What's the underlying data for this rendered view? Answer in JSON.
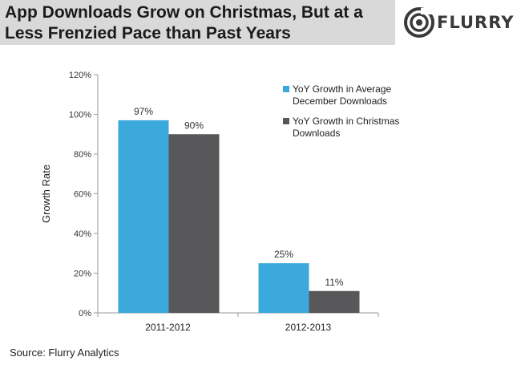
{
  "header": {
    "title_line1": "App Downloads Grow on Christmas, But at a",
    "title_line2": "Less Frenzied Pace than Past Years",
    "brand": "FLURRY"
  },
  "footer": {
    "source": "Source: Flurry Analytics"
  },
  "chart_data": {
    "type": "bar",
    "title": "App Downloads Grow on Christmas, But at a Less Frenzied Pace than Past Years",
    "categories": [
      "2011-2012",
      "2012-2013"
    ],
    "series": [
      {
        "name_lines": [
          "YoY Growth in Average",
          "December Downloads"
        ],
        "name": "YoY Growth in Average December Downloads",
        "color": "#3ba9dc",
        "values": [
          97,
          25
        ],
        "labels": [
          "97%",
          "25%"
        ]
      },
      {
        "name_lines": [
          "YoY Growth in Christmas",
          "Downloads"
        ],
        "name": "YoY Growth in Christmas Downloads",
        "color": "#58585a",
        "values": [
          90,
          11
        ],
        "labels": [
          "90%",
          "11%"
        ]
      }
    ],
    "xlabel": "",
    "ylabel": "Growth Rate",
    "ylim": [
      0,
      120
    ],
    "yticks": [
      0,
      20,
      40,
      60,
      80,
      100,
      120
    ],
    "ytick_labels": [
      "0%",
      "20%",
      "40%",
      "60%",
      "80%",
      "100%",
      "120%"
    ],
    "legend_position": "top-right",
    "grid": false
  }
}
